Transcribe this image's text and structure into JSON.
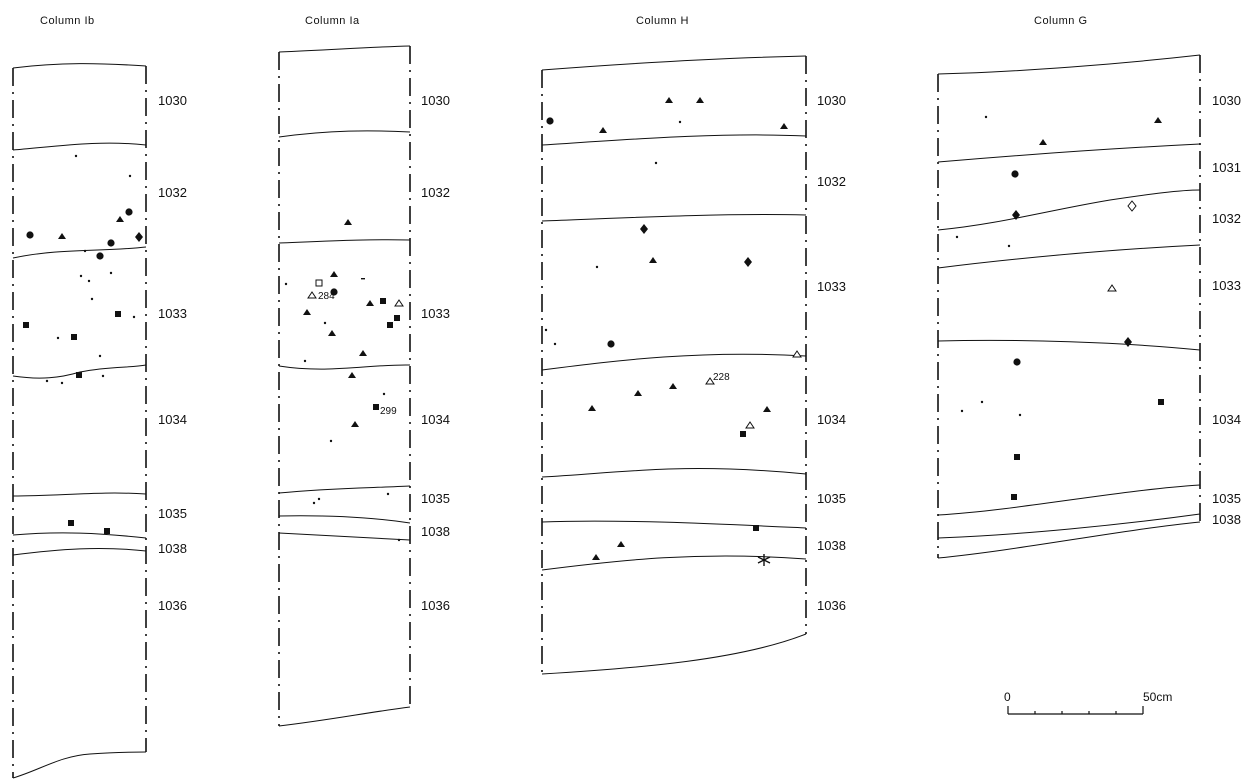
{
  "columns": [
    {
      "title": "Column Ib",
      "layers": [
        "1030",
        "1032",
        "1033",
        "1034",
        "1035",
        "1038",
        "1036"
      ]
    },
    {
      "title": "Column Ia",
      "layers": [
        "1030",
        "1032",
        "1033",
        "1034",
        "1035",
        "1038",
        "1036"
      ],
      "find_labels": [
        "284",
        "299"
      ]
    },
    {
      "title": "Column H",
      "layers": [
        "1030",
        "1032",
        "1033",
        "1034",
        "1035",
        "1038",
        "1036"
      ],
      "find_labels": [
        "228"
      ]
    },
    {
      "title": "Column G",
      "layers": [
        "1030",
        "1031",
        "1032",
        "1033",
        "1034",
        "1035",
        "1038"
      ]
    }
  ],
  "scale_bar": {
    "start_label": "0",
    "end_label": "50cm"
  },
  "symbol_types": [
    "circle-filled",
    "triangle-filled",
    "triangle-open",
    "square-filled",
    "square-open",
    "diamond-filled",
    "diamond-open",
    "small-dot",
    "asterisk"
  ]
}
